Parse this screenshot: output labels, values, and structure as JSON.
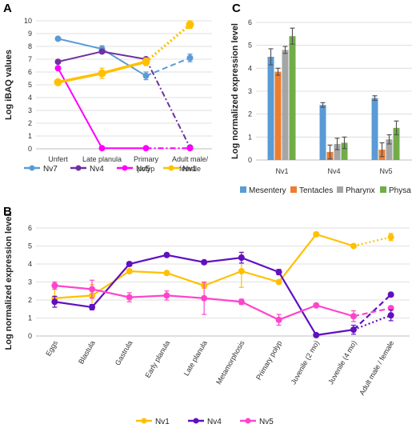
{
  "chart_data": [
    {
      "panel": "A",
      "type": "line",
      "ylabel": "Log iBAQ values",
      "categories": [
        "Unfert",
        "Late planula",
        "Primary polyp",
        "Adult male/ female"
      ],
      "ylim": [
        0,
        10
      ],
      "yticks": [
        0,
        1,
        2,
        3,
        4,
        5,
        6,
        7,
        8,
        9,
        10
      ],
      "series": [
        {
          "name": "Nv7",
          "color": "#5b9bd5",
          "values": [
            8.6,
            7.8,
            5.7,
            7.1
          ],
          "errors": [
            0,
            0.25,
            0.3,
            0.3
          ],
          "last_style": "dash"
        },
        {
          "name": "Nv4",
          "color": "#7030a0",
          "values": [
            6.8,
            7.6,
            7.0,
            0.1
          ],
          "errors": [
            0,
            0.15,
            0.15,
            0.1
          ],
          "last_style": "dashdot"
        },
        {
          "name": "Nv5",
          "color": "#ff00ff",
          "values": [
            6.3,
            0.05,
            0.05,
            0.05
          ],
          "errors": [
            0,
            0.05,
            0.05,
            0.05
          ],
          "last_style": "dashdot"
        },
        {
          "name": "Nv1",
          "color": "#ffc000",
          "values": [
            5.2,
            5.9,
            6.8,
            9.7
          ],
          "errors": [
            0.15,
            0.4,
            0.3,
            0.3
          ],
          "last_style": "dot"
        }
      ]
    },
    {
      "panel": "B",
      "type": "line",
      "ylabel": "Log normalized expression level",
      "categories": [
        "Eggs",
        "Blastula",
        "Gastrula",
        "Early planula",
        "Late planula",
        "Metamorphosis",
        "Primary polyp",
        "Juvenile (2 mo)",
        "Juvenile (4 mo)",
        "Adult male / female"
      ],
      "ylim": [
        0,
        6
      ],
      "yticks": [
        0,
        1,
        2,
        3,
        4,
        5,
        6
      ],
      "series": [
        {
          "name": "Nv1",
          "color": "#ffc000",
          "values": [
            2.1,
            2.25,
            3.6,
            3.5,
            2.8,
            3.6,
            3.0,
            5.65,
            5.0,
            5.5
          ],
          "errors": [
            0.5,
            0.6,
            0.1,
            0.1,
            0.15,
            0.9,
            0.1,
            0.1,
            0.1,
            0.2
          ]
        },
        {
          "name": "Nv4",
          "color": "#6010c0",
          "values": [
            1.9,
            1.6,
            4.0,
            4.5,
            4.1,
            4.35,
            3.55,
            0.05,
            0.35,
            2.3
          ],
          "errors": [
            0.3,
            0.15,
            0.1,
            0.05,
            0.1,
            0.3,
            0.15,
            0.05,
            0.25,
            0.1
          ]
        },
        {
          "name": "Nv5",
          "color": "#ff44cc",
          "values": [
            2.8,
            2.6,
            2.15,
            2.25,
            2.1,
            1.9,
            0.9,
            1.7,
            1.1,
            1.55
          ],
          "errors": [
            0.2,
            0.5,
            0.25,
            0.25,
            0.9,
            0.15,
            0.3,
            0.1,
            0.3,
            0.1
          ]
        }
      ],
      "nv4_last": {
        "value": 1.15,
        "error": 0.3
      }
    },
    {
      "panel": "C",
      "type": "bar",
      "ylabel": "Log normalized expression level",
      "categories": [
        "Nv1",
        "Nv4",
        "Nv5"
      ],
      "ylim": [
        0,
        6
      ],
      "yticks": [
        0,
        1,
        2,
        3,
        4,
        5,
        6
      ],
      "series": [
        {
          "name": "Mesentery",
          "color": "#5b9bd5",
          "values": [
            4.5,
            2.4,
            2.7
          ],
          "errors": [
            0.35,
            0.1,
            0.1
          ]
        },
        {
          "name": "Tentacles",
          "color": "#ed7d31",
          "values": [
            3.85,
            0.35,
            0.45
          ],
          "errors": [
            0.15,
            0.3,
            0.3
          ]
        },
        {
          "name": "Pharynx",
          "color": "#a5a5a5",
          "values": [
            4.8,
            0.7,
            0.9
          ],
          "errors": [
            0.15,
            0.25,
            0.2
          ]
        },
        {
          "name": "Physa",
          "color": "#70ad47",
          "values": [
            5.4,
            0.75,
            1.4
          ],
          "errors": [
            0.35,
            0.25,
            0.3
          ]
        }
      ]
    }
  ],
  "panel_labels": [
    "A",
    "B",
    "C"
  ]
}
